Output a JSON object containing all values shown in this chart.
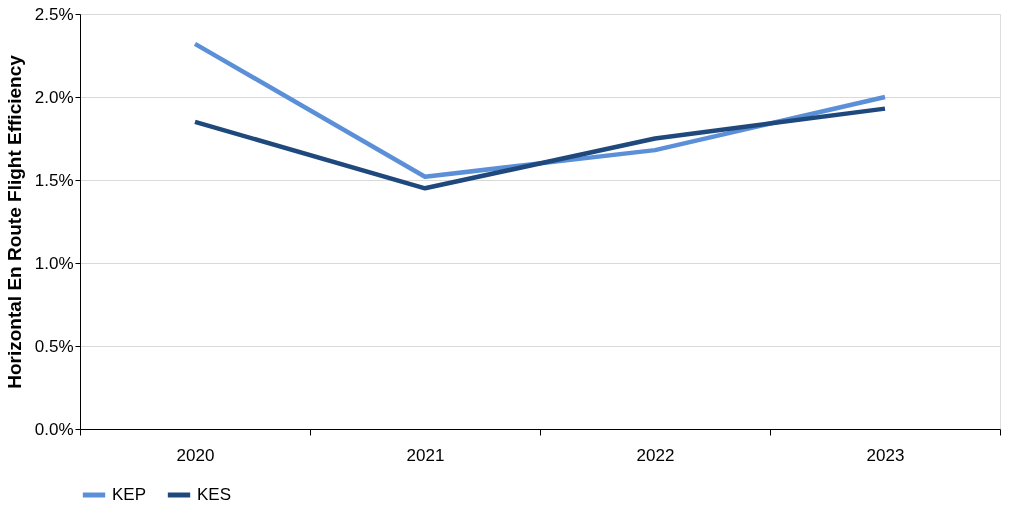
{
  "chart_data": {
    "type": "line",
    "ylabel": "Horizontal En Route Flight Efficiency",
    "categories": [
      "2020",
      "2021",
      "2022",
      "2023"
    ],
    "series": [
      {
        "name": "KEP",
        "color": "#5b90d8",
        "values": [
          2.32,
          1.52,
          1.68,
          2.0
        ]
      },
      {
        "name": "KES",
        "color": "#1f497d",
        "values": [
          1.85,
          1.45,
          1.75,
          1.93
        ]
      }
    ],
    "ylim": [
      0,
      2.5
    ],
    "yticks": [
      {
        "value": 0,
        "label": "0.0%"
      },
      {
        "value": 0.5,
        "label": "0.5%"
      },
      {
        "value": 1.0,
        "label": "1.0%"
      },
      {
        "value": 1.5,
        "label": "1.5%"
      },
      {
        "value": 2.0,
        "label": "2.0%"
      },
      {
        "value": 2.5,
        "label": "2.5%"
      }
    ],
    "grid": "y",
    "legend": "bottom",
    "marker": "none",
    "line_style": "solid"
  }
}
